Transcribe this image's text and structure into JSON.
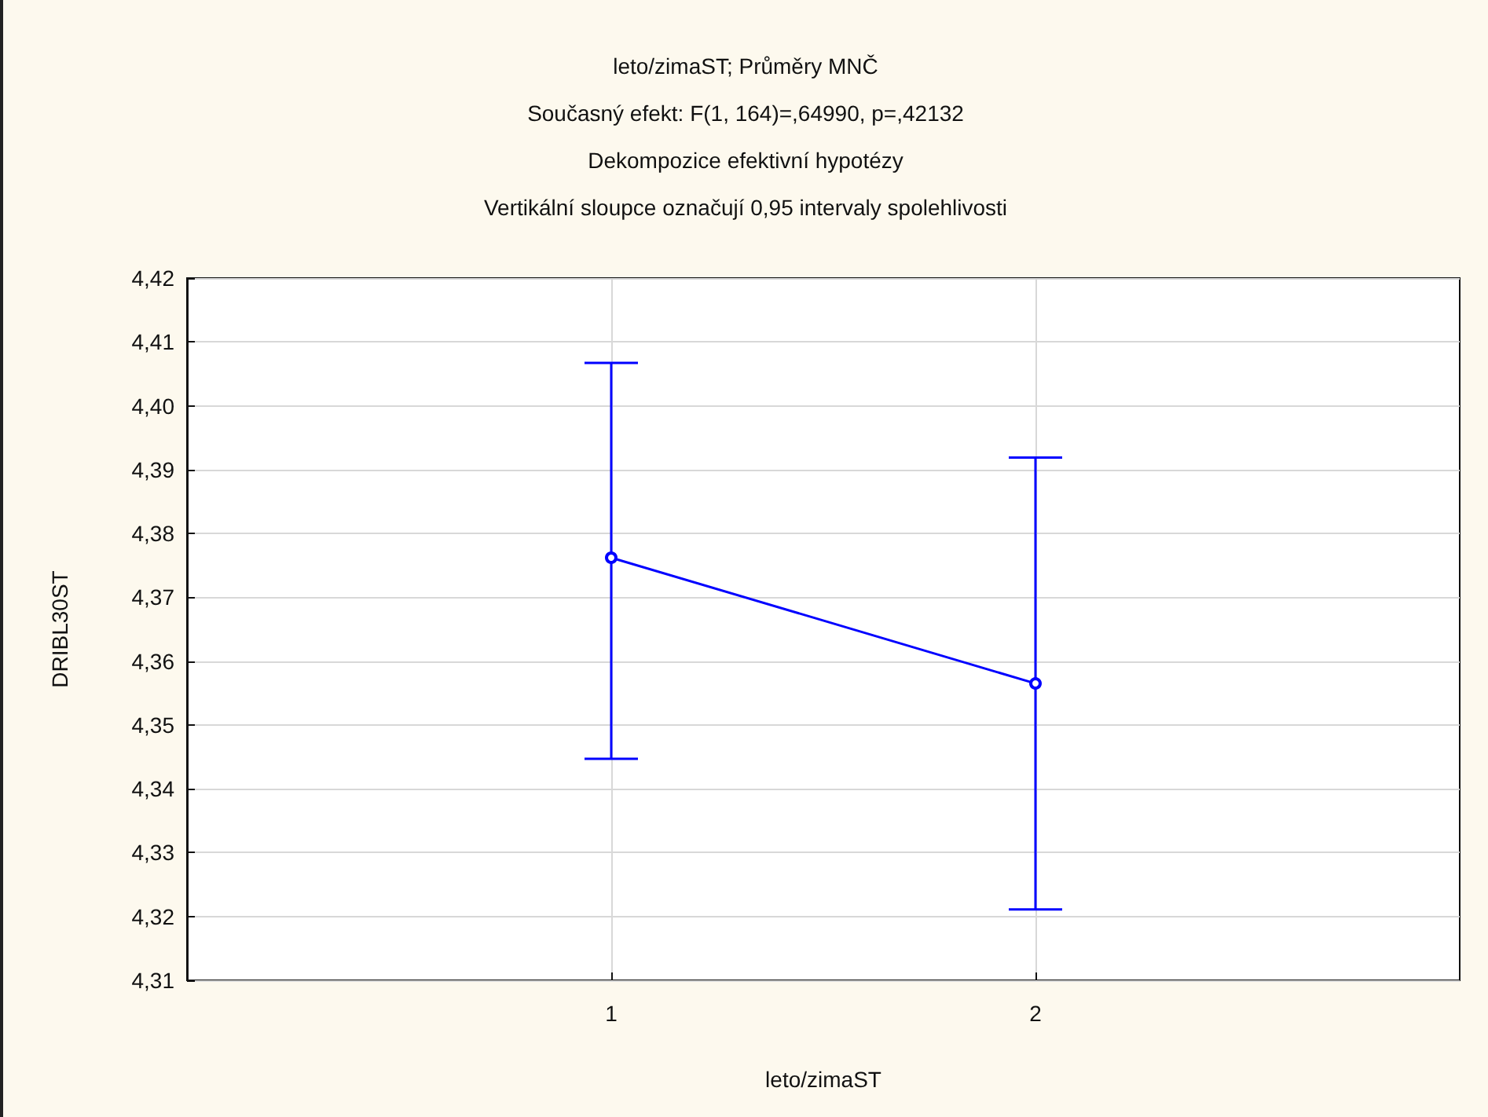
{
  "chart_data": {
    "type": "line",
    "title": "leto/zimaST; Průměry MNČ",
    "subtitle": "Současný efekt: F(1, 164)=,64990, p=,42132\nDekompozice efektivní hypotézy\nVertikální sloupce označují 0,95 intervaly spolehlivosti",
    "xlabel": "leto/zimaST",
    "ylabel": "DRIBL30ST",
    "categories": [
      "1",
      "2"
    ],
    "series": [
      {
        "color": "#0000ff",
        "values": [
          4.3762,
          4.3565
        ],
        "errors": [
          [
            4.3447,
            4.4067
          ],
          [
            4.3211,
            4.3919
          ]
        ]
      }
    ],
    "ylim": [
      4.31,
      4.42
    ],
    "yticks": [
      {
        "value": 4.31,
        "label": "4,31"
      },
      {
        "value": 4.32,
        "label": "4,32"
      },
      {
        "value": 4.33,
        "label": "4,33"
      },
      {
        "value": 4.34,
        "label": "4,34"
      },
      {
        "value": 4.35,
        "label": "4,35"
      },
      {
        "value": 4.36,
        "label": "4,36"
      },
      {
        "value": 4.37,
        "label": "4,37"
      },
      {
        "value": 4.38,
        "label": "4,38"
      },
      {
        "value": 4.39,
        "label": "4,39"
      },
      {
        "value": 4.4,
        "label": "4,40"
      },
      {
        "value": 4.41,
        "label": "4,41"
      },
      {
        "value": 4.42,
        "label": "4,42"
      }
    ],
    "grid": true,
    "marker": "circle",
    "line_style": "solid"
  }
}
